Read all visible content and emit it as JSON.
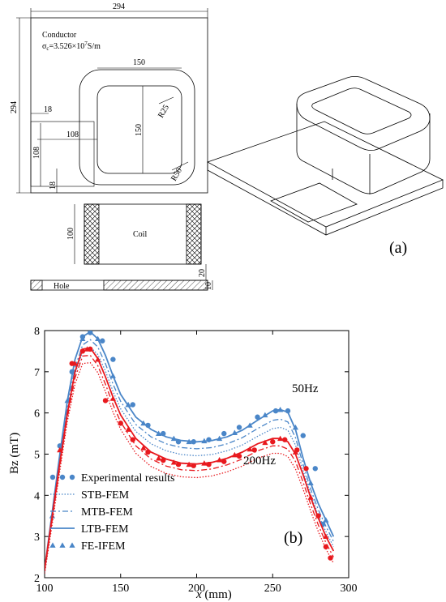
{
  "panel_a": {
    "label": "(a)",
    "conductor_label": "Conductor",
    "sigma_label": "σ",
    "sigma_sub": "c",
    "sigma_value": "=3.526×10",
    "sigma_exp": "7",
    "sigma_unit": "S/m",
    "dim_294_top": "294",
    "dim_294_left": "294",
    "dim_150_top": "150",
    "dim_150_right": "150",
    "dim_r25": "R25",
    "dim_r50": "R50",
    "dim_18_top": "18",
    "dim_108_h": "108",
    "dim_108_v": "108",
    "dim_18_bottom": "18",
    "dim_100": "100",
    "coil_label": "Coil",
    "dim_20": "20",
    "dim_10": "10",
    "hole_label": "Hole"
  },
  "panel_b": {
    "label": "(b)"
  },
  "chart_data": {
    "type": "line",
    "xlabel": "x (mm)",
    "ylabel": "Bz (mT)",
    "xlim": [
      100,
      300
    ],
    "ylim": [
      2,
      8
    ],
    "xticks": [
      "100",
      "150",
      "200",
      "250",
      "300"
    ],
    "yticks": [
      "2",
      "3",
      "4",
      "5",
      "6",
      "7",
      "8"
    ],
    "annotations": [
      "50Hz",
      "200Hz"
    ],
    "colors": {
      "50Hz": "#4a86c8",
      "200Hz": "#e8191e"
    },
    "legend_position": "bottom-left",
    "legend": [
      "Experimental results",
      "STB-FEM",
      "MTB-FEM",
      "LTB-FEM",
      "FE-IFEM"
    ],
    "series": [
      {
        "name": "LTB-FEM",
        "group": "50Hz",
        "style": "solid",
        "x": [
          100,
          105,
          110,
          115,
          120,
          125,
          130,
          135,
          140,
          145,
          150,
          160,
          170,
          180,
          190,
          200,
          210,
          220,
          230,
          240,
          250,
          255,
          260,
          265,
          270,
          275,
          280,
          285,
          290
        ],
        "y": [
          2.2,
          3.6,
          5.0,
          6.3,
          7.3,
          7.85,
          7.97,
          7.8,
          7.4,
          6.9,
          6.45,
          5.9,
          5.6,
          5.42,
          5.33,
          5.3,
          5.33,
          5.42,
          5.58,
          5.82,
          6.05,
          6.08,
          6.02,
          5.6,
          4.9,
          4.3,
          3.8,
          3.4,
          3.0
        ]
      },
      {
        "name": "MTB-FEM",
        "group": "50Hz",
        "style": "dashdot",
        "x": [
          100,
          105,
          110,
          115,
          120,
          125,
          130,
          135,
          140,
          145,
          150,
          160,
          170,
          180,
          190,
          200,
          210,
          220,
          230,
          240,
          250,
          255,
          260,
          265,
          270,
          275,
          280,
          285,
          290
        ],
        "y": [
          2.15,
          3.5,
          4.9,
          6.15,
          7.1,
          7.65,
          7.78,
          7.6,
          7.2,
          6.7,
          6.28,
          5.72,
          5.42,
          5.25,
          5.16,
          5.13,
          5.16,
          5.25,
          5.4,
          5.62,
          5.82,
          5.85,
          5.78,
          5.4,
          4.75,
          4.15,
          3.65,
          3.25,
          2.88
        ]
      },
      {
        "name": "STB-FEM",
        "group": "50Hz",
        "style": "dotted",
        "x": [
          100,
          105,
          110,
          115,
          120,
          125,
          130,
          135,
          140,
          145,
          150,
          160,
          170,
          180,
          190,
          200,
          210,
          220,
          230,
          240,
          250,
          255,
          260,
          265,
          270,
          275,
          280,
          285,
          290
        ],
        "y": [
          2.1,
          3.4,
          4.8,
          6.0,
          6.95,
          7.48,
          7.6,
          7.42,
          7.02,
          6.52,
          6.1,
          5.55,
          5.25,
          5.08,
          4.99,
          4.96,
          4.99,
          5.08,
          5.22,
          5.43,
          5.62,
          5.65,
          5.58,
          5.22,
          4.6,
          4.02,
          3.52,
          3.12,
          2.75
        ]
      },
      {
        "name": "Experimental results",
        "group": "50Hz",
        "style": "circles",
        "x": [
          110,
          118,
          125,
          130,
          138,
          145,
          158,
          168,
          178,
          188,
          198,
          208,
          218,
          228,
          240,
          252,
          260,
          270,
          278,
          283
        ],
        "y": [
          5.2,
          7.0,
          7.85,
          7.95,
          7.75,
          7.3,
          6.2,
          5.7,
          5.5,
          5.3,
          5.3,
          5.35,
          5.5,
          5.65,
          5.9,
          6.05,
          6.05,
          5.45,
          4.65,
          3.3
        ]
      },
      {
        "name": "FE-IFEM",
        "group": "50Hz",
        "style": "triangles",
        "x": [
          105,
          115,
          125,
          135,
          145,
          155,
          165,
          175,
          185,
          195,
          205,
          215,
          225,
          235,
          245,
          255,
          265,
          275,
          285
        ],
        "y": [
          3.5,
          6.3,
          7.8,
          7.8,
          6.9,
          6.2,
          5.75,
          5.5,
          5.38,
          5.3,
          5.32,
          5.38,
          5.52,
          5.7,
          5.95,
          6.08,
          5.65,
          4.3,
          3.4
        ]
      },
      {
        "name": "LTB-FEM",
        "group": "200Hz",
        "style": "solid",
        "x": [
          100,
          105,
          110,
          115,
          120,
          125,
          130,
          135,
          140,
          145,
          150,
          160,
          170,
          180,
          190,
          200,
          210,
          220,
          230,
          240,
          250,
          255,
          260,
          265,
          270,
          275,
          280,
          285,
          290
        ],
        "y": [
          2.2,
          3.5,
          4.8,
          6.0,
          7.0,
          7.55,
          7.58,
          7.32,
          6.88,
          6.38,
          5.95,
          5.38,
          5.05,
          4.88,
          4.78,
          4.76,
          4.8,
          4.9,
          5.05,
          5.25,
          5.38,
          5.38,
          5.3,
          5.0,
          4.5,
          3.95,
          3.45,
          3.0,
          2.65
        ]
      },
      {
        "name": "MTB-FEM",
        "group": "200Hz",
        "style": "dashdot",
        "x": [
          100,
          105,
          110,
          115,
          120,
          125,
          130,
          135,
          140,
          145,
          150,
          160,
          170,
          180,
          190,
          200,
          210,
          220,
          230,
          240,
          250,
          255,
          260,
          265,
          270,
          275,
          280,
          285,
          290
        ],
        "y": [
          2.15,
          3.4,
          4.7,
          5.9,
          6.85,
          7.38,
          7.4,
          7.15,
          6.7,
          6.2,
          5.78,
          5.2,
          4.88,
          4.71,
          4.62,
          4.6,
          4.64,
          4.74,
          4.88,
          5.08,
          5.2,
          5.2,
          5.12,
          4.82,
          4.32,
          3.78,
          3.28,
          2.85,
          2.5
        ]
      },
      {
        "name": "STB-FEM",
        "group": "200Hz",
        "style": "dotted",
        "x": [
          100,
          105,
          110,
          115,
          120,
          125,
          130,
          135,
          140,
          145,
          150,
          160,
          170,
          180,
          190,
          200,
          210,
          220,
          230,
          240,
          250,
          255,
          260,
          265,
          270,
          275,
          280,
          285,
          290
        ],
        "y": [
          2.1,
          3.3,
          4.6,
          5.8,
          6.7,
          7.2,
          7.22,
          6.98,
          6.52,
          6.02,
          5.6,
          5.02,
          4.7,
          4.53,
          4.45,
          4.43,
          4.47,
          4.57,
          4.71,
          4.9,
          5.02,
          5.02,
          4.94,
          4.64,
          4.15,
          3.62,
          3.12,
          2.7,
          2.35
        ]
      },
      {
        "name": "Experimental results",
        "group": "200Hz",
        "style": "circles",
        "x": [
          118,
          125,
          130,
          140,
          150,
          158,
          168,
          178,
          188,
          198,
          208,
          218,
          228,
          238,
          250,
          258,
          266,
          272,
          280,
          285,
          288
        ],
        "y": [
          7.2,
          7.5,
          7.55,
          6.3,
          5.75,
          5.35,
          5.05,
          4.85,
          4.75,
          4.72,
          4.75,
          4.82,
          4.95,
          5.1,
          5.3,
          5.35,
          5.1,
          4.65,
          3.5,
          2.75,
          2.48
        ]
      },
      {
        "name": "FE-IFEM",
        "group": "200Hz",
        "style": "triangles",
        "x": [
          110,
          120,
          128,
          135,
          145,
          155,
          165,
          175,
          185,
          195,
          205,
          215,
          225,
          235,
          245,
          255,
          265,
          275,
          285
        ],
        "y": [
          5.1,
          7.2,
          7.55,
          7.3,
          6.35,
          5.6,
          5.15,
          4.9,
          4.8,
          4.75,
          4.78,
          4.86,
          4.98,
          5.12,
          5.28,
          5.38,
          5.05,
          3.95,
          3.0
        ]
      }
    ]
  }
}
